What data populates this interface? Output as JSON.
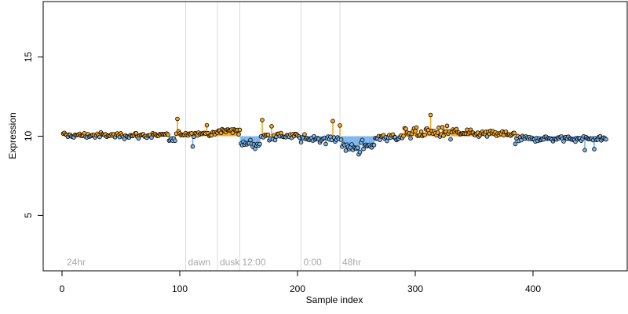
{
  "chart_data": {
    "type": "scatter",
    "title": "",
    "xlabel": "Sample index",
    "ylabel": "Expression",
    "xlim": [
      -16,
      480
    ],
    "ylim": [
      1.5,
      18.5
    ],
    "xticks": [
      0,
      100,
      200,
      300,
      400
    ],
    "yticks": [
      5,
      10,
      15
    ],
    "grid": false,
    "baseline": 10,
    "n_points": 462,
    "colors": {
      "above": "#f5a623",
      "below": "#7ab4ec",
      "outline": "#000000",
      "vline": "#dcdcdc",
      "vlabel": "#a8a8a8"
    },
    "vlines": [
      {
        "x": 2,
        "label": "24hr",
        "show_line": false
      },
      {
        "x": 105,
        "label": "dawn",
        "show_line": true
      },
      {
        "x": 132,
        "label": "dusk",
        "show_line": true
      },
      {
        "x": 151,
        "label": "12:00",
        "show_line": true
      },
      {
        "x": 203,
        "label": "0:00",
        "show_line": true
      },
      {
        "x": 236,
        "label": "48hr",
        "show_line": true
      }
    ],
    "segments": [
      {
        "x_start": 1,
        "x_end": 90,
        "mean": 10.05,
        "noise": 0.15
      },
      {
        "x_start": 91,
        "x_end": 96,
        "mean": 9.75,
        "noise": 0.12
      },
      {
        "x_start": 97,
        "x_end": 132,
        "mean": 10.15,
        "noise": 0.12
      },
      {
        "x_start": 133,
        "x_end": 151,
        "mean": 10.35,
        "noise": 0.18
      },
      {
        "x_start": 152,
        "x_end": 168,
        "mean": 9.5,
        "noise": 0.25
      },
      {
        "x_start": 169,
        "x_end": 200,
        "mean": 10.0,
        "noise": 0.18
      },
      {
        "x_start": 201,
        "x_end": 236,
        "mean": 9.85,
        "noise": 0.2
      },
      {
        "x_start": 237,
        "x_end": 265,
        "mean": 9.3,
        "noise": 0.4
      },
      {
        "x_start": 266,
        "x_end": 290,
        "mean": 9.95,
        "noise": 0.2
      },
      {
        "x_start": 291,
        "x_end": 335,
        "mean": 10.25,
        "noise": 0.3
      },
      {
        "x_start": 336,
        "x_end": 385,
        "mean": 10.15,
        "noise": 0.18
      },
      {
        "x_start": 386,
        "x_end": 462,
        "mean": 9.85,
        "noise": 0.15
      }
    ]
  }
}
